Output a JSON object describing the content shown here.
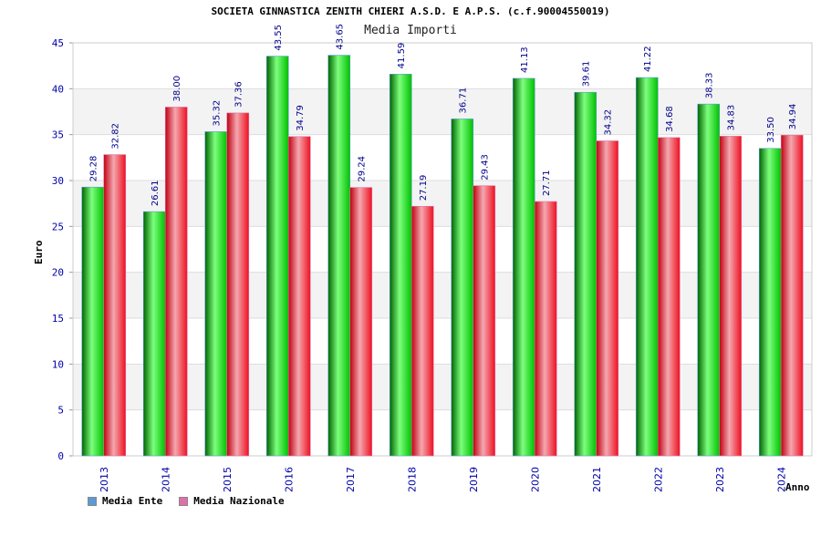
{
  "chart_data": {
    "type": "bar",
    "title": "SOCIETA GINNASTICA ZENITH CHIERI A.S.D. E A.P.S. (c.f.90004550019)",
    "subtitle": "Media Importi",
    "xlabel": "Anno",
    "ylabel": "Euro",
    "ylim": [
      0,
      45
    ],
    "yticks": [
      0,
      5,
      10,
      15,
      20,
      25,
      30,
      35,
      40,
      45
    ],
    "grid": true,
    "legend_position": "bottom-left",
    "categories": [
      "2013",
      "2014",
      "2015",
      "2016",
      "2017",
      "2018",
      "2019",
      "2020",
      "2021",
      "2022",
      "2023",
      "2024"
    ],
    "series": [
      {
        "name": "Media Ente",
        "legend_color": "#5b9bd5",
        "bar_color": "#00c000",
        "values": [
          29.28,
          26.61,
          35.32,
          43.55,
          43.65,
          41.59,
          36.71,
          41.13,
          39.61,
          41.22,
          38.33,
          33.5
        ],
        "labels": [
          "29.28",
          "26.61",
          "35.32",
          "43.55",
          "43.65",
          "41.59",
          "36.71",
          "41.13",
          "39.61",
          "41.22",
          "38.33",
          "33.50"
        ]
      },
      {
        "name": "Media Nazionale",
        "legend_color": "#e070a8",
        "bar_color": "#ee1020",
        "values": [
          32.82,
          38.0,
          37.36,
          34.79,
          29.24,
          27.19,
          29.43,
          27.71,
          34.32,
          34.68,
          34.83,
          34.94
        ],
        "labels": [
          "32.82",
          "38.00",
          "37.36",
          "34.79",
          "29.24",
          "27.19",
          "29.43",
          "27.71",
          "34.32",
          "34.68",
          "34.83",
          "34.94"
        ]
      }
    ]
  }
}
